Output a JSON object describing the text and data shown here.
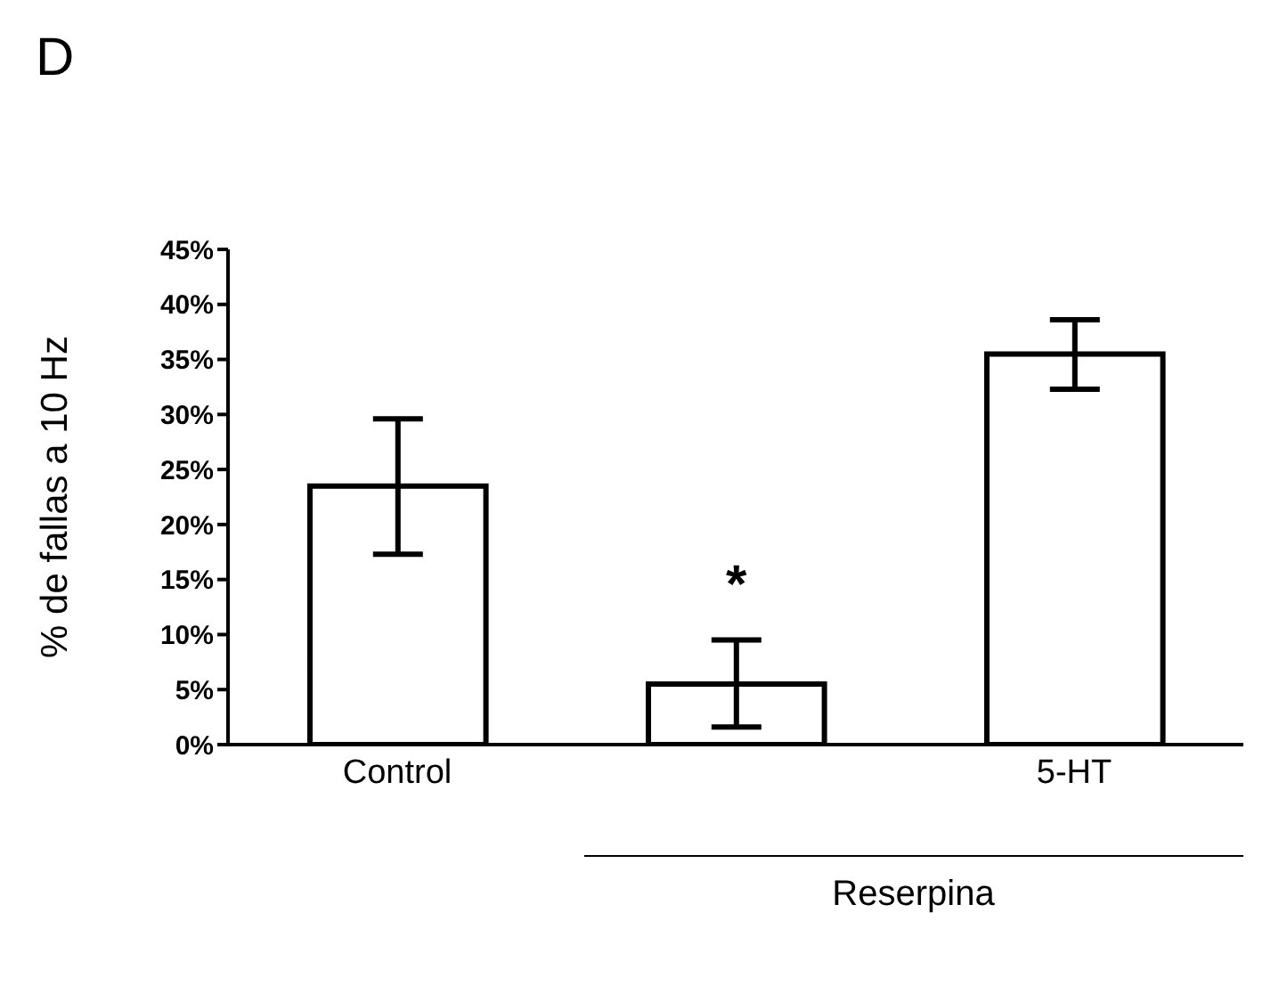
{
  "chart_data": {
    "type": "bar",
    "title": "D",
    "ylabel": "% de fallas a 10 Hz",
    "categories": [
      "Control",
      null,
      "5-HT"
    ],
    "values": [
      23.5,
      5.5,
      35.5
    ],
    "errors": [
      [
        17.3,
        29.6
      ],
      [
        1.6,
        9.5
      ],
      [
        32.3,
        38.6
      ]
    ],
    "value_labels": [
      null,
      "*",
      null
    ],
    "color": "#ffffff",
    "ylim": [
      0,
      45
    ],
    "yticks": [
      {
        "value": 0,
        "label": "0%"
      },
      {
        "value": 5,
        "label": "5%"
      },
      {
        "value": 10,
        "label": "10%"
      },
      {
        "value": 15,
        "label": "15%"
      },
      {
        "value": 20,
        "label": "20%"
      },
      {
        "value": 25,
        "label": "25%"
      },
      {
        "value": 30,
        "label": "30%"
      },
      {
        "value": 35,
        "label": "35%"
      },
      {
        "value": 40,
        "label": "40%"
      },
      {
        "value": 45,
        "label": "45%"
      }
    ],
    "grid": false,
    "legend": false,
    "annotations": [
      "Reserpina"
    ]
  }
}
